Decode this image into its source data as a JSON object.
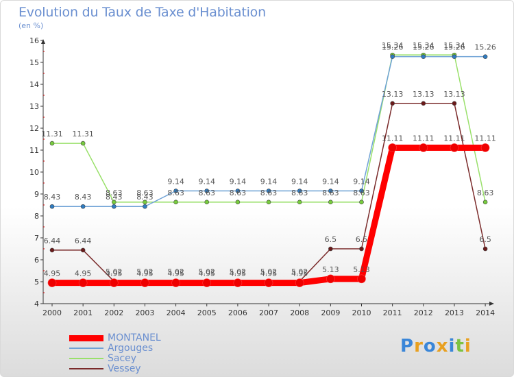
{
  "title": "Evolution du Taux de Taxe d'Habitation",
  "subtitle": "(en %)",
  "logo": "Proxiti",
  "colors": {
    "title": "#6a8fd0",
    "axis": "#333333",
    "grid": "#e6e6e6",
    "minor_tick": "#cc0000"
  },
  "chart_data": {
    "type": "line",
    "x": [
      "2000",
      "2001",
      "2002",
      "2003",
      "2004",
      "2005",
      "2006",
      "2007",
      "2008",
      "2009",
      "2010",
      "2011",
      "2012",
      "2013",
      "2014"
    ],
    "ylim": [
      4,
      16
    ],
    "yticks": [
      "4",
      "5",
      "6",
      "7",
      "8",
      "9",
      "10",
      "11",
      "12",
      "13",
      "14",
      "15",
      "16"
    ],
    "grid": false,
    "legend_position": "bottom-left",
    "series": [
      {
        "name": "MONTANEL",
        "color": "#ff0000",
        "marker": "#ee0000",
        "width": 9,
        "values": [
          4.95,
          4.95,
          4.95,
          4.95,
          4.95,
          4.95,
          4.95,
          4.95,
          4.95,
          5.13,
          5.13,
          11.11,
          11.11,
          11.11,
          11.11
        ],
        "labels": [
          "4.95",
          "4.95",
          "4.95",
          "4.95",
          "4.95",
          "4.95",
          "4.95",
          "4.95",
          "4.95",
          "5.13",
          "5.13",
          "11.11",
          "11.11",
          "11.11",
          "11.11"
        ]
      },
      {
        "name": "Argouges",
        "color": "#6fa2d6",
        "marker": "#2f7cc2",
        "width": 1.5,
        "values": [
          8.43,
          8.43,
          8.43,
          8.43,
          9.14,
          9.14,
          9.14,
          9.14,
          9.14,
          9.14,
          9.14,
          15.26,
          15.26,
          15.26,
          15.26
        ],
        "labels": [
          "8.43",
          "8.43",
          "8.43",
          "8.43",
          "9.14",
          "9.14",
          "9.14",
          "9.14",
          "9.14",
          "9.14",
          "9.14",
          "15.26",
          "15.26",
          "15.26",
          "15.26"
        ]
      },
      {
        "name": "Sacey",
        "color": "#99e06a",
        "marker": "#77cc3d",
        "width": 1.5,
        "values": [
          11.31,
          11.31,
          8.63,
          8.63,
          8.63,
          8.63,
          8.63,
          8.63,
          8.63,
          8.63,
          8.63,
          15.34,
          15.34,
          15.34,
          8.63
        ],
        "labels": [
          "11.31",
          "11.31",
          "8.63",
          "8.63",
          "8.63",
          "8.63",
          "8.63",
          "8.63",
          "8.63",
          "8.63",
          "8.63",
          "15.34",
          "15.34",
          "15.34",
          "8.63"
        ]
      },
      {
        "name": "Vessey",
        "color": "#7a2a2a",
        "marker": "#6b1a1a",
        "width": 1.5,
        "values": [
          6.44,
          6.44,
          5.02,
          5.02,
          5.02,
          5.02,
          5.02,
          5.02,
          5.02,
          6.5,
          6.5,
          13.13,
          13.13,
          13.13,
          6.5
        ],
        "labels": [
          "6.44",
          "6.44",
          "5.02",
          "5.02",
          "5.02",
          "5.02",
          "5.02",
          "5.02",
          "5.02",
          "6.5",
          "6.5",
          "13.13",
          "13.13",
          "13.13",
          "6.5"
        ]
      }
    ]
  }
}
